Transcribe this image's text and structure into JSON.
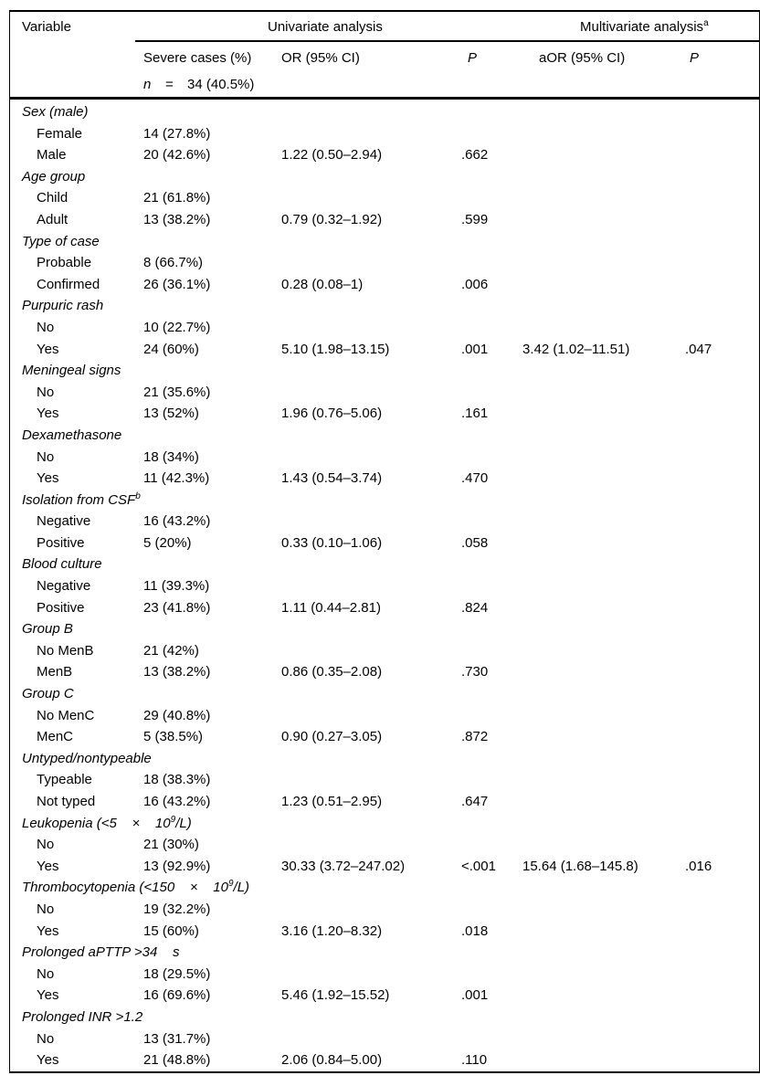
{
  "table": {
    "header": {
      "variable": "Variable",
      "univariate": "Univariate analysis",
      "multivariate": "Multivariate analysis",
      "multivariate_sup": "a",
      "severe": "Severe cases (%)",
      "or": "OR (95% CI)",
      "p": "P",
      "aor": "aOR (95% CI)",
      "p2": "P",
      "n_label": "n",
      "n_eq": "=",
      "n_value": "34 (40.5%)"
    },
    "rows": [
      {
        "type": "group",
        "parts": [
          {
            "t": "Sex (male)"
          }
        ]
      },
      {
        "type": "item",
        "label": "Female",
        "severe": "14 (27.8%)"
      },
      {
        "type": "item",
        "label": "Male",
        "severe": "20 (42.6%)",
        "or": "1.22 (0.50–2.94)",
        "p": ".662"
      },
      {
        "type": "group",
        "parts": [
          {
            "t": "Age group"
          }
        ]
      },
      {
        "type": "item",
        "label": "Child",
        "severe": "21 (61.8%)"
      },
      {
        "type": "item",
        "label": "Adult",
        "severe": "13 (38.2%)",
        "or": "0.79 (0.32–1.92)",
        "p": ".599"
      },
      {
        "type": "group",
        "parts": [
          {
            "t": "Type of case"
          }
        ]
      },
      {
        "type": "item",
        "label": "Probable",
        "severe": "8 (66.7%)"
      },
      {
        "type": "item",
        "label": "Confirmed",
        "severe": "26 (36.1%)",
        "or": "0.28 (0.08–1)",
        "p": ".006"
      },
      {
        "type": "group",
        "parts": [
          {
            "t": "Purpuric rash"
          }
        ]
      },
      {
        "type": "item",
        "label": "No",
        "severe": "10 (22.7%)"
      },
      {
        "type": "item",
        "label": "Yes",
        "severe": "24 (60%)",
        "or": "5.10 (1.98–13.15)",
        "p": ".001",
        "aor": "3.42 (1.02–11.51)",
        "p2": ".047"
      },
      {
        "type": "group",
        "parts": [
          {
            "t": "Meningeal signs"
          }
        ]
      },
      {
        "type": "item",
        "label": "No",
        "severe": "21 (35.6%)"
      },
      {
        "type": "item",
        "label": "Yes",
        "severe": "13 (52%)",
        "or": "1.96 (0.76–5.06)",
        "p": ".161"
      },
      {
        "type": "group",
        "parts": [
          {
            "t": "Dexamethasone"
          }
        ]
      },
      {
        "type": "item",
        "label": "No",
        "severe": "18 (34%)"
      },
      {
        "type": "item",
        "label": "Yes",
        "severe": "11 (42.3%)",
        "or": "1.43 (0.54–3.74)",
        "p": ".470"
      },
      {
        "type": "group",
        "parts": [
          {
            "t": "Isolation from CSF"
          },
          {
            "t": "b",
            "sup": true
          }
        ]
      },
      {
        "type": "item",
        "label": "Negative",
        "severe": "16 (43.2%)"
      },
      {
        "type": "item",
        "label": "Positive",
        "severe": "5 (20%)",
        "or": "0.33 (0.10–1.06)",
        "p": ".058"
      },
      {
        "type": "group",
        "parts": [
          {
            "t": "Blood culture"
          }
        ]
      },
      {
        "type": "item",
        "label": "Negative",
        "severe": "11 (39.3%)"
      },
      {
        "type": "item",
        "label": "Positive",
        "severe": "23 (41.8%)",
        "or": "1.11 (0.44–2.81)",
        "p": ".824"
      },
      {
        "type": "group",
        "parts": [
          {
            "t": "Group B"
          }
        ]
      },
      {
        "type": "item",
        "label": "No MenB",
        "severe": "21 (42%)"
      },
      {
        "type": "item",
        "label": "MenB",
        "severe": "13 (38.2%)",
        "or": "0.86 (0.35–2.08)",
        "p": ".730"
      },
      {
        "type": "group",
        "parts": [
          {
            "t": "Group C"
          }
        ]
      },
      {
        "type": "item",
        "label": "No MenC",
        "severe": "29 (40.8%)"
      },
      {
        "type": "item",
        "label": "MenC",
        "severe": "5 (38.5%)",
        "or": "0.90 (0.27–3.05)",
        "p": ".872"
      },
      {
        "type": "group",
        "parts": [
          {
            "t": "Untyped/nontypeable"
          }
        ]
      },
      {
        "type": "item",
        "label": "Typeable",
        "severe": "18 (38.3%)"
      },
      {
        "type": "item",
        "label": "Not typed",
        "severe": "16 (43.2%)",
        "or": "1.23 (0.51–2.95)",
        "p": ".647"
      },
      {
        "type": "group",
        "parts": [
          {
            "t": "Leukopenia (<5    ×    10"
          },
          {
            "t": "9",
            "sup": true
          },
          {
            "t": "/L)"
          }
        ]
      },
      {
        "type": "item",
        "label": "No",
        "severe": "21 (30%)"
      },
      {
        "type": "item",
        "label": "Yes",
        "severe": "13 (92.9%)",
        "or": "30.33 (3.72–247.02)",
        "p": "<.001",
        "aor": "15.64 (1.68–145.8)",
        "p2": ".016"
      },
      {
        "type": "group",
        "parts": [
          {
            "t": "Thrombocytopenia (<150    ×    10"
          },
          {
            "t": "9",
            "sup": true
          },
          {
            "t": "/L)"
          }
        ]
      },
      {
        "type": "item",
        "label": "No",
        "severe": "19 (32.2%)"
      },
      {
        "type": "item",
        "label": "Yes",
        "severe": "15 (60%)",
        "or": "3.16 (1.20–8.32)",
        "p": ".018"
      },
      {
        "type": "group",
        "parts": [
          {
            "t": "Prolonged aPTTP >34    s"
          }
        ]
      },
      {
        "type": "item",
        "label": "No",
        "severe": "18 (29.5%)"
      },
      {
        "type": "item",
        "label": "Yes",
        "severe": "16 (69.6%)",
        "or": "5.46 (1.92–15.52)",
        "p": ".001"
      },
      {
        "type": "group",
        "parts": [
          {
            "t": "Prolonged INR >1.2"
          }
        ]
      },
      {
        "type": "item",
        "label": "No",
        "severe": "13 (31.7%)"
      },
      {
        "type": "item",
        "label": "Yes",
        "severe": "21 (48.8%)",
        "or": "2.06 (0.84–5.00)",
        "p": ".110"
      }
    ]
  }
}
